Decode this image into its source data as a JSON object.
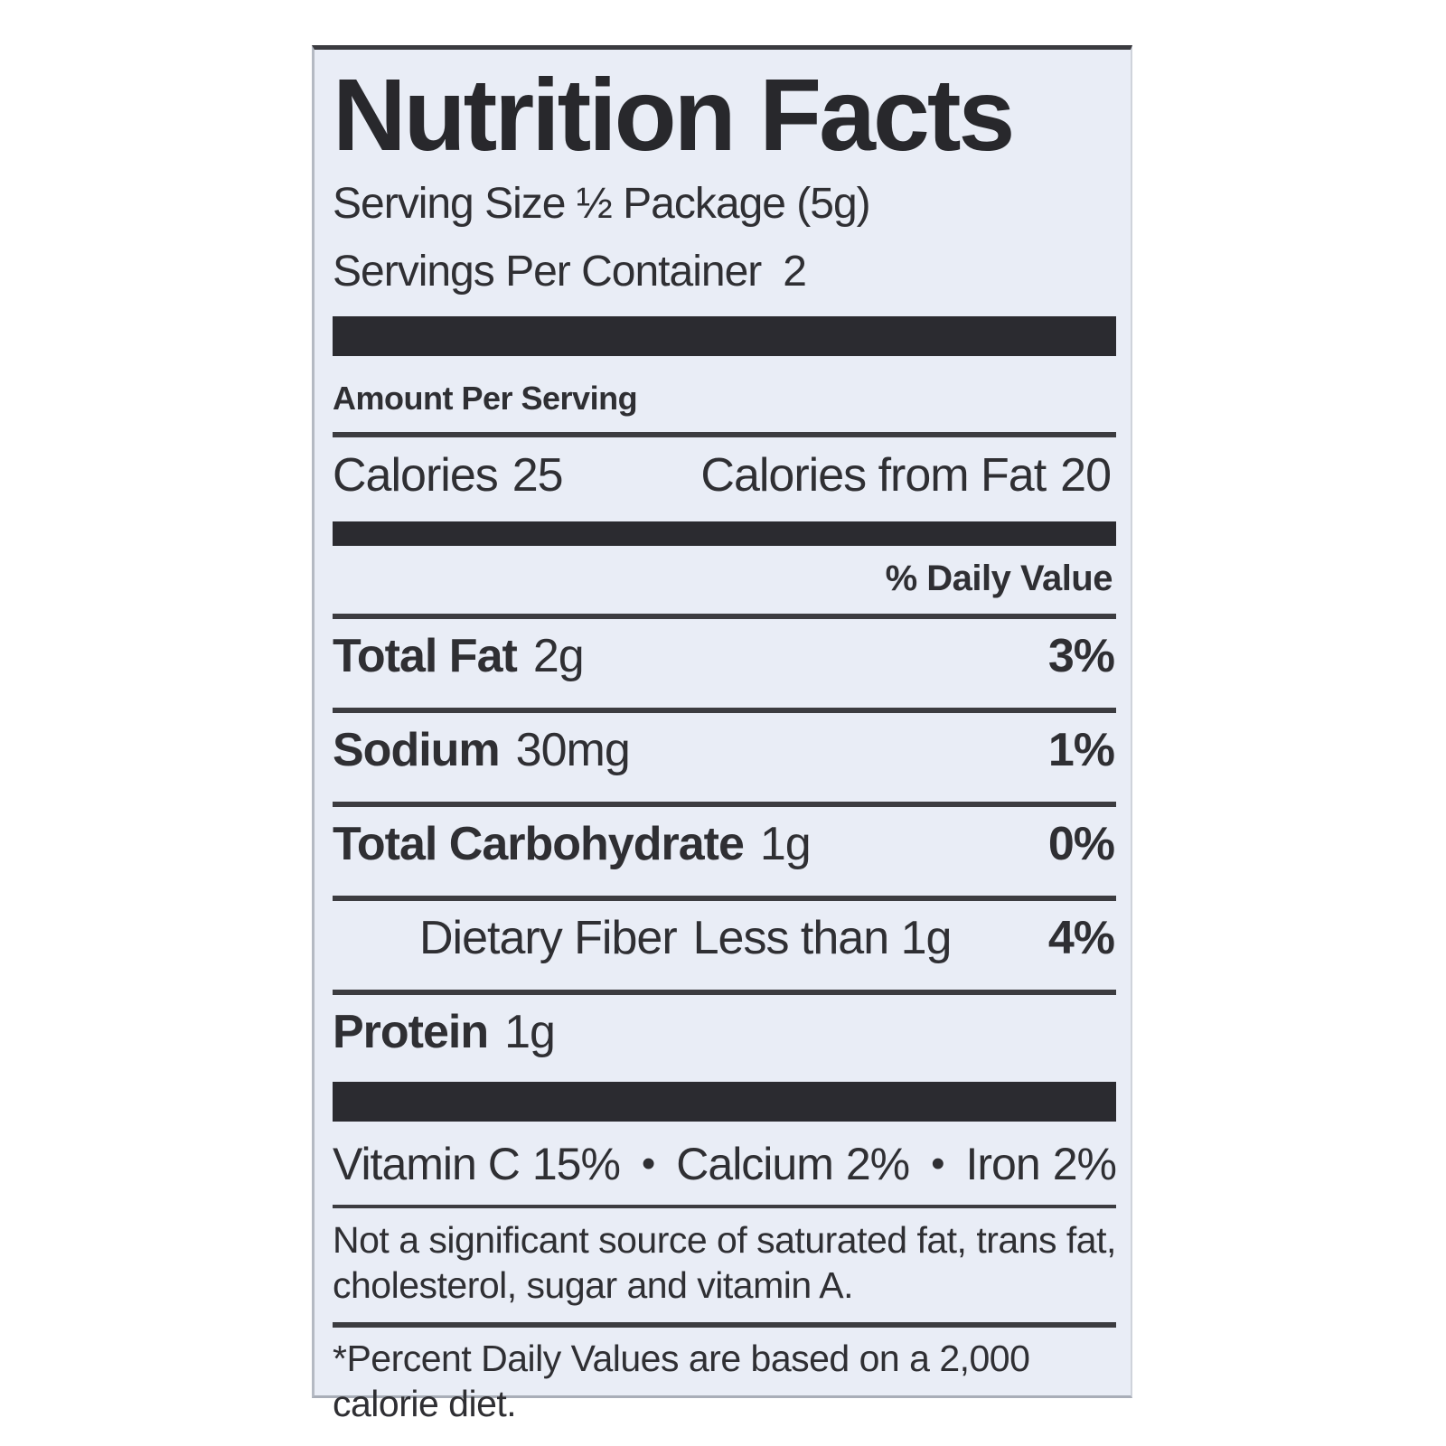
{
  "label": {
    "title": "Nutrition Facts",
    "serving_size": "Serving Size ½ Package (5g)",
    "servings_per_container_label": "Servings Per Container",
    "servings_per_container_value": "2",
    "amount_per_serving": "Amount Per Serving",
    "calories_label": "Calories",
    "calories_value": "25",
    "calories_from_fat_label": "Calories from Fat",
    "calories_from_fat_value": "20",
    "daily_value_header": "% Daily Value",
    "nutrients": [
      {
        "name": "Total Fat",
        "amount": "2g",
        "dv": "3%"
      },
      {
        "name": "Sodium",
        "amount": "30mg",
        "dv": "1%"
      },
      {
        "name": "Total Carbohydrate",
        "amount": "1g",
        "dv": "0%"
      },
      {
        "name": "Dietary Fiber",
        "amount": "Less than 1g",
        "dv": "4%"
      },
      {
        "name": "Protein",
        "amount": "1g",
        "dv": ""
      }
    ],
    "vitamins": [
      {
        "name": "Vitamin C",
        "value": "15%"
      },
      {
        "name": "Calcium",
        "value": "2%"
      },
      {
        "name": "Iron",
        "value": "2%"
      }
    ],
    "bullet": "•",
    "not_significant_note": "Not a significant source of saturated fat, trans fat, cholesterol, sugar and vitamin A.",
    "footnote": "*Percent Daily Values are based on a 2,000 calorie diet.",
    "colors": {
      "label_background": "#e9edf6",
      "text": "#2f2f33",
      "bar": "#2b2b30",
      "page_background": "#ffffff"
    }
  }
}
